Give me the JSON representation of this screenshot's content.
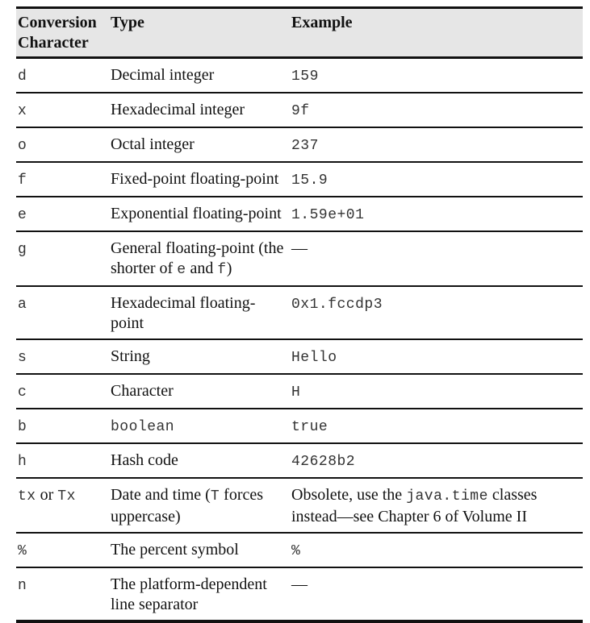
{
  "table": {
    "headers": {
      "conversion": "Conversion Character",
      "type": "Type",
      "example": "Example"
    },
    "rows": [
      {
        "char": "d",
        "type": "Decimal integer",
        "example": "159"
      },
      {
        "char": "x",
        "type": "Hexadecimal integer",
        "example": "9f"
      },
      {
        "char": "o",
        "type": "Octal integer",
        "example": "237"
      },
      {
        "char": "f",
        "type": "Fixed-point floating-point",
        "example": "15.9"
      },
      {
        "char": "e",
        "type": "Exponential floating-point",
        "example": "1.59e+01"
      },
      {
        "char": "g",
        "type_prefix": "General floating-point (the shorter of ",
        "type_code1": "e",
        "type_mid": " and ",
        "type_code2": "f",
        "type_suffix": ")",
        "example": "—"
      },
      {
        "char": "a",
        "type": "Hexadecimal floating-point",
        "example": "0x1.fccdp3"
      },
      {
        "char": "s",
        "type": "String",
        "example": "Hello"
      },
      {
        "char": "c",
        "type": "Character",
        "example": "H"
      },
      {
        "char": "b",
        "type": "boolean",
        "example": "true"
      },
      {
        "char": "h",
        "type": "Hash code",
        "example": "42628b2"
      },
      {
        "char_code1": "tx",
        "char_mid": " or ",
        "char_code2": "Tx",
        "type_prefix": "Date and time (",
        "type_code": "T",
        "type_suffix": " forces uppercase)",
        "example_prefix": "Obsolete, use the ",
        "example_code": "java.time",
        "example_suffix": " classes instead—see Chapter 6 of Volume II"
      },
      {
        "char": "%",
        "type": "The percent symbol",
        "example": "%"
      },
      {
        "char": "n",
        "type": "The platform-dependent line separator",
        "example": "—"
      }
    ]
  }
}
